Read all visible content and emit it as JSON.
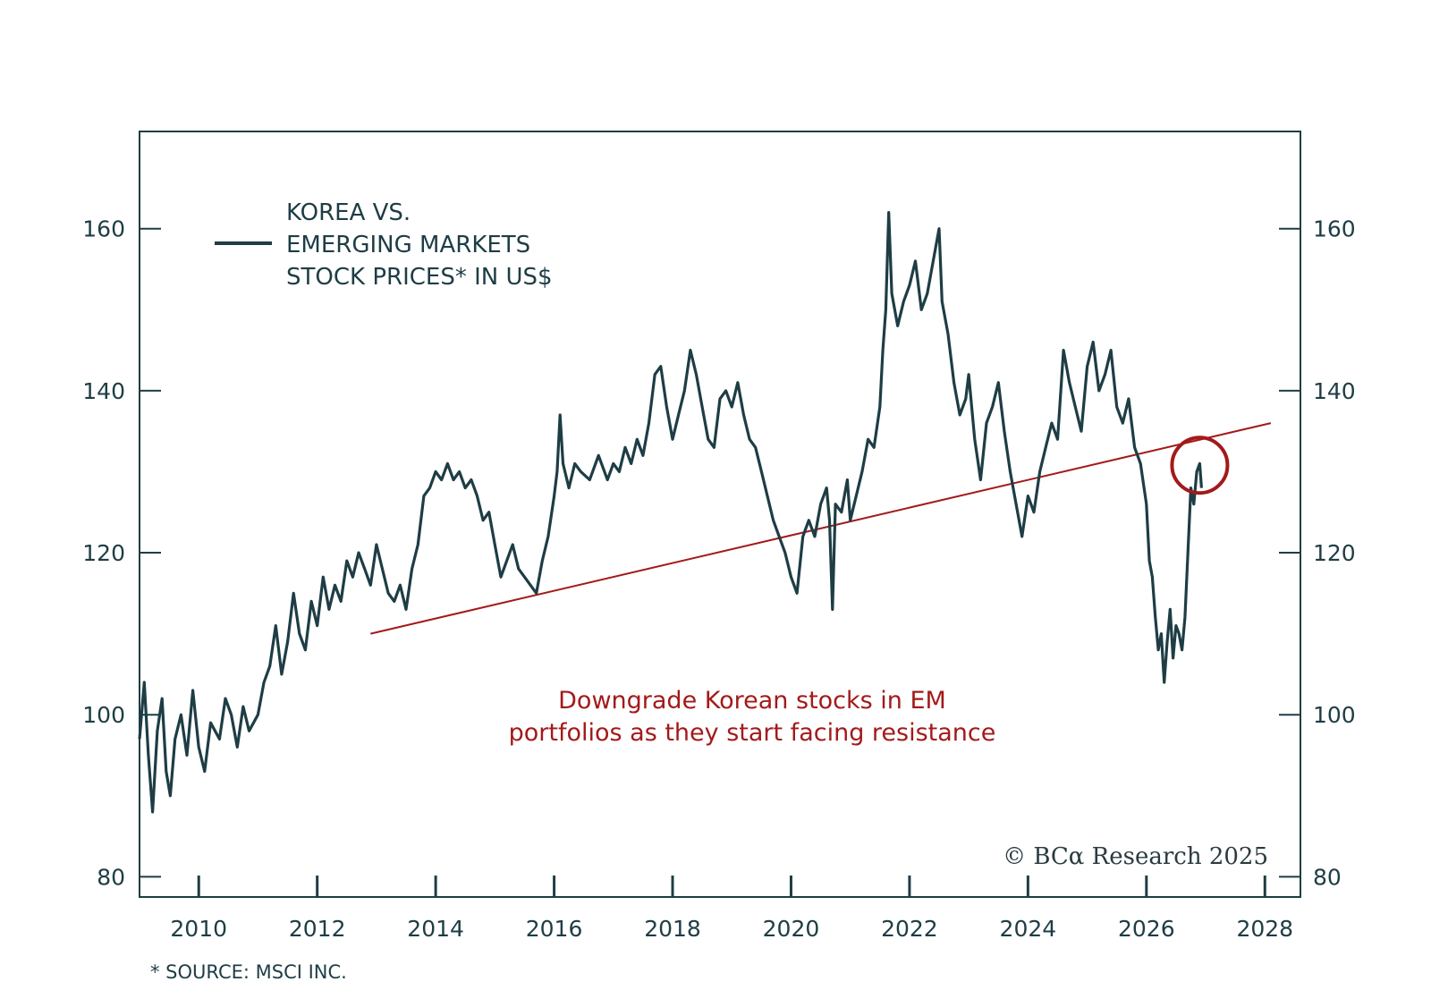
{
  "chart_data": {
    "type": "line",
    "legend": "KOREA VS.\nEMERGING MARKETS\nSTOCK PRICES* IN US$",
    "legend_lines": [
      "KOREA VS.",
      "EMERGING MARKETS",
      "STOCK PRICES* IN US$"
    ],
    "legend_position": "top-left",
    "xlim": [
      2009,
      2028.6
    ],
    "ylim": [
      77.5,
      172
    ],
    "x_ticks": [
      2010,
      2012,
      2014,
      2016,
      2018,
      2020,
      2022,
      2024,
      2026,
      2028
    ],
    "x_tick_labels": [
      "2010",
      "2012",
      "2014",
      "2016",
      "2018",
      "2020",
      "2022",
      "2024",
      "2026",
      "2028"
    ],
    "y_ticks": [
      80,
      100,
      120,
      140,
      160
    ],
    "y_tick_labels": [
      "80",
      "100",
      "120",
      "140",
      "160"
    ],
    "grid": false,
    "series": [
      {
        "name": "KOREA VS. EMERGING MARKETS STOCK PRICES* IN US$",
        "color": "#1e3d45",
        "points": [
          [
            2009.0,
            97
          ],
          [
            2009.08,
            104
          ],
          [
            2009.15,
            95
          ],
          [
            2009.22,
            88
          ],
          [
            2009.3,
            98
          ],
          [
            2009.38,
            102
          ],
          [
            2009.45,
            93
          ],
          [
            2009.52,
            90
          ],
          [
            2009.6,
            97
          ],
          [
            2009.7,
            100
          ],
          [
            2009.8,
            95
          ],
          [
            2009.9,
            103
          ],
          [
            2010.0,
            96
          ],
          [
            2010.1,
            93
          ],
          [
            2010.2,
            99
          ],
          [
            2010.35,
            97
          ],
          [
            2010.45,
            102
          ],
          [
            2010.55,
            100
          ],
          [
            2010.65,
            96
          ],
          [
            2010.75,
            101
          ],
          [
            2010.85,
            98
          ],
          [
            2011.0,
            100
          ],
          [
            2011.1,
            104
          ],
          [
            2011.2,
            106
          ],
          [
            2011.3,
            111
          ],
          [
            2011.4,
            105
          ],
          [
            2011.5,
            109
          ],
          [
            2011.6,
            115
          ],
          [
            2011.7,
            110
          ],
          [
            2011.8,
            108
          ],
          [
            2011.9,
            114
          ],
          [
            2012.0,
            111
          ],
          [
            2012.1,
            117
          ],
          [
            2012.2,
            113
          ],
          [
            2012.3,
            116
          ],
          [
            2012.4,
            114
          ],
          [
            2012.5,
            119
          ],
          [
            2012.6,
            117
          ],
          [
            2012.7,
            120
          ],
          [
            2012.8,
            118
          ],
          [
            2012.9,
            116
          ],
          [
            2013.0,
            121
          ],
          [
            2013.1,
            118
          ],
          [
            2013.2,
            115
          ],
          [
            2013.3,
            114
          ],
          [
            2013.4,
            116
          ],
          [
            2013.5,
            113
          ],
          [
            2013.6,
            118
          ],
          [
            2013.7,
            121
          ],
          [
            2013.8,
            127
          ],
          [
            2013.9,
            128
          ],
          [
            2014.0,
            130
          ],
          [
            2014.1,
            129
          ],
          [
            2014.2,
            131
          ],
          [
            2014.3,
            129
          ],
          [
            2014.4,
            130
          ],
          [
            2014.5,
            128
          ],
          [
            2014.6,
            129
          ],
          [
            2014.7,
            127
          ],
          [
            2014.8,
            124
          ],
          [
            2014.9,
            125
          ],
          [
            2015.0,
            121
          ],
          [
            2015.1,
            117
          ],
          [
            2015.2,
            119
          ],
          [
            2015.3,
            121
          ],
          [
            2015.4,
            118
          ],
          [
            2015.5,
            117
          ],
          [
            2015.6,
            116
          ],
          [
            2015.7,
            115
          ],
          [
            2015.8,
            119
          ],
          [
            2015.9,
            122
          ],
          [
            2016.0,
            127
          ],
          [
            2016.05,
            130
          ],
          [
            2016.1,
            137
          ],
          [
            2016.15,
            131
          ],
          [
            2016.25,
            128
          ],
          [
            2016.35,
            131
          ],
          [
            2016.45,
            130
          ],
          [
            2016.6,
            129
          ],
          [
            2016.75,
            132
          ],
          [
            2016.9,
            129
          ],
          [
            2017.0,
            131
          ],
          [
            2017.1,
            130
          ],
          [
            2017.2,
            133
          ],
          [
            2017.3,
            131
          ],
          [
            2017.4,
            134
          ],
          [
            2017.5,
            132
          ],
          [
            2017.6,
            136
          ],
          [
            2017.7,
            142
          ],
          [
            2017.8,
            143
          ],
          [
            2017.9,
            138
          ],
          [
            2018.0,
            134
          ],
          [
            2018.1,
            137
          ],
          [
            2018.2,
            140
          ],
          [
            2018.3,
            145
          ],
          [
            2018.4,
            142
          ],
          [
            2018.5,
            138
          ],
          [
            2018.6,
            134
          ],
          [
            2018.7,
            133
          ],
          [
            2018.8,
            139
          ],
          [
            2018.9,
            140
          ],
          [
            2019.0,
            138
          ],
          [
            2019.1,
            141
          ],
          [
            2019.2,
            137
          ],
          [
            2019.3,
            134
          ],
          [
            2019.4,
            133
          ],
          [
            2019.5,
            130
          ],
          [
            2019.6,
            127
          ],
          [
            2019.7,
            124
          ],
          [
            2019.8,
            122
          ],
          [
            2019.9,
            120
          ],
          [
            2020.0,
            117
          ],
          [
            2020.1,
            115
          ],
          [
            2020.2,
            122
          ],
          [
            2020.3,
            124
          ],
          [
            2020.4,
            122
          ],
          [
            2020.5,
            126
          ],
          [
            2020.6,
            128
          ],
          [
            2020.65,
            124
          ],
          [
            2020.7,
            113
          ],
          [
            2020.75,
            126
          ],
          [
            2020.85,
            125
          ],
          [
            2020.95,
            129
          ],
          [
            2021.0,
            124
          ],
          [
            2021.1,
            127
          ],
          [
            2021.2,
            130
          ],
          [
            2021.3,
            134
          ],
          [
            2021.4,
            133
          ],
          [
            2021.5,
            138
          ],
          [
            2021.55,
            145
          ],
          [
            2021.6,
            150
          ],
          [
            2021.65,
            162
          ],
          [
            2021.7,
            152
          ],
          [
            2021.8,
            148
          ],
          [
            2021.9,
            151
          ],
          [
            2022.0,
            153
          ],
          [
            2022.1,
            156
          ],
          [
            2022.2,
            150
          ],
          [
            2022.3,
            152
          ],
          [
            2022.4,
            156
          ],
          [
            2022.5,
            160
          ],
          [
            2022.55,
            151
          ],
          [
            2022.65,
            147
          ],
          [
            2022.75,
            141
          ],
          [
            2022.85,
            137
          ],
          [
            2022.95,
            139
          ],
          [
            2023.0,
            142
          ],
          [
            2023.1,
            134
          ],
          [
            2023.2,
            129
          ],
          [
            2023.3,
            136
          ],
          [
            2023.4,
            138
          ],
          [
            2023.5,
            141
          ],
          [
            2023.6,
            135
          ],
          [
            2023.7,
            130
          ],
          [
            2023.8,
            126
          ],
          [
            2023.9,
            122
          ],
          [
            2024.0,
            127
          ],
          [
            2024.1,
            125
          ],
          [
            2024.2,
            130
          ],
          [
            2024.3,
            133
          ],
          [
            2024.4,
            136
          ],
          [
            2024.5,
            134
          ],
          [
            2024.6,
            145
          ],
          [
            2024.7,
            141
          ],
          [
            2024.8,
            138
          ],
          [
            2024.9,
            135
          ],
          [
            2025.0,
            143
          ],
          [
            2025.1,
            146
          ],
          [
            2025.2,
            140
          ],
          [
            2025.3,
            142
          ],
          [
            2025.4,
            145
          ],
          [
            2025.5,
            138
          ],
          [
            2025.6,
            136
          ],
          [
            2025.7,
            139
          ],
          [
            2025.8,
            133
          ],
          [
            2025.9,
            131
          ],
          [
            2026.0,
            126
          ],
          [
            2026.05,
            119
          ],
          [
            2026.1,
            117
          ],
          [
            2026.15,
            112
          ],
          [
            2026.2,
            108
          ],
          [
            2026.25,
            110
          ],
          [
            2026.3,
            104
          ],
          [
            2026.35,
            109
          ],
          [
            2026.4,
            113
          ],
          [
            2026.45,
            107
          ],
          [
            2026.5,
            111
          ],
          [
            2026.55,
            110
          ],
          [
            2026.6,
            108
          ],
          [
            2026.65,
            112
          ],
          [
            2026.7,
            120
          ],
          [
            2026.75,
            128
          ],
          [
            2026.8,
            126
          ],
          [
            2026.85,
            130
          ],
          [
            2026.9,
            131
          ],
          [
            2026.93,
            128
          ]
        ]
      }
    ],
    "trendline": {
      "color": "#a31a1a",
      "points": [
        [
          2012.9,
          110
        ],
        [
          2028.1,
          136
        ]
      ]
    },
    "highlight_circle": {
      "center": [
        2026.9,
        130.8
      ],
      "color": "#a31a1a"
    },
    "annotation": [
      "Downgrade Korean stocks in EM",
      "portfolios as they start facing resistance"
    ]
  },
  "credit": "© BCα Research 2025",
  "source_note": "* SOURCE: MSCI INC."
}
